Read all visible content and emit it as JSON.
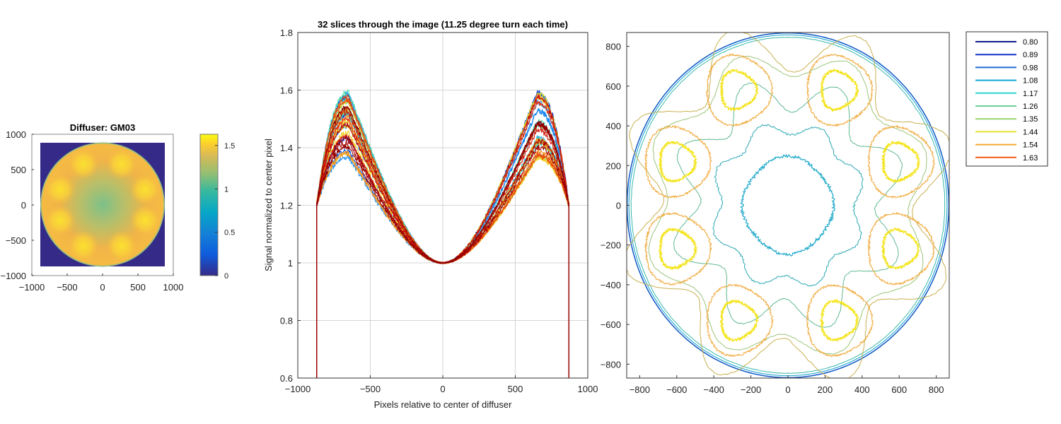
{
  "chart_data": [
    {
      "type": "heatmap",
      "title": "Diffuser: GM03",
      "xlim": [
        -1000,
        1000
      ],
      "ylim": [
        -1000,
        1000
      ],
      "xticks": [
        -1000,
        -500,
        0,
        500,
        1000
      ],
      "yticks": [
        1000,
        500,
        0,
        -500,
        -1000
      ],
      "colorbar": {
        "range": [
          0,
          1.63
        ],
        "ticks": [
          0,
          0.5,
          1,
          1.5
        ]
      },
      "disc_radius": 870,
      "center_value": 1.0,
      "edge_value": 1.45,
      "hotspot_value": 1.6,
      "hotspot_angles_deg": [
        65,
        20,
        -20,
        -65,
        -115,
        -160,
        160,
        115
      ],
      "hotspot_radius": 640,
      "grid": false
    },
    {
      "type": "line",
      "title": "32 slices through the image (11.25 degree turn each time)",
      "xlabel": "Pixels relative to center of diffuser",
      "ylabel": "Signal normalized to center pixel",
      "xlim": [
        -1000,
        1000
      ],
      "ylim": [
        0.6,
        1.8
      ],
      "xticks": [
        -1000,
        -500,
        0,
        500,
        1000
      ],
      "yticks": [
        1.8,
        1.6,
        1.4,
        1.2,
        1,
        0.8,
        0.6
      ],
      "grid": true,
      "edge_x": [
        -870,
        870
      ],
      "series_count": 32,
      "center_value": 1.0,
      "peak_x": [
        -650,
        650
      ],
      "left_peak_min": 1.36,
      "left_peak_max": 1.6,
      "right_peak_min": 1.35,
      "right_peak_max": 1.6
    },
    {
      "type": "contour",
      "xlim": [
        -870,
        870
      ],
      "ylim": [
        -870,
        870
      ],
      "xticks": [
        -800,
        -600,
        -400,
        -200,
        0,
        200,
        400,
        600,
        800
      ],
      "yticks": [
        800,
        600,
        400,
        200,
        0,
        -200,
        -400,
        -600,
        -800
      ],
      "levels": [
        "0.80",
        "0.89",
        "0.98",
        "1.08",
        "1.17",
        "1.26",
        "1.35",
        "1.44",
        "1.54",
        "1.63"
      ],
      "level_colors": [
        "#0a1a8c",
        "#1230c8",
        "#1f6ad8",
        "#10a8d8",
        "#2cd4d4",
        "#6ccf96",
        "#96d46e",
        "#e4e432",
        "#f4a832",
        "#f05a14"
      ],
      "drawn_levels": [
        {
          "level": "1.08",
          "color": "#17a6c8",
          "radius": 240
        },
        {
          "level": "1.17",
          "color": "#2aa8b4",
          "radius": 390
        },
        {
          "level": "1.26",
          "color": "#60b890",
          "radius": 560
        },
        {
          "level": "1.35",
          "color": "#9cc478",
          "radius": 720
        },
        {
          "level": "1.44",
          "color": "#c8b050",
          "radius": 800
        },
        {
          "level": "1.54",
          "color": "#f0a838",
          "radius": 175
        },
        {
          "level": "1.63",
          "color": "#f4e41c",
          "radius": 95
        }
      ],
      "hotspot_angles_deg": [
        65,
        20,
        -20,
        -65,
        -115,
        -160,
        160,
        115
      ],
      "hotspot_radius": 640,
      "grid": false
    }
  ]
}
